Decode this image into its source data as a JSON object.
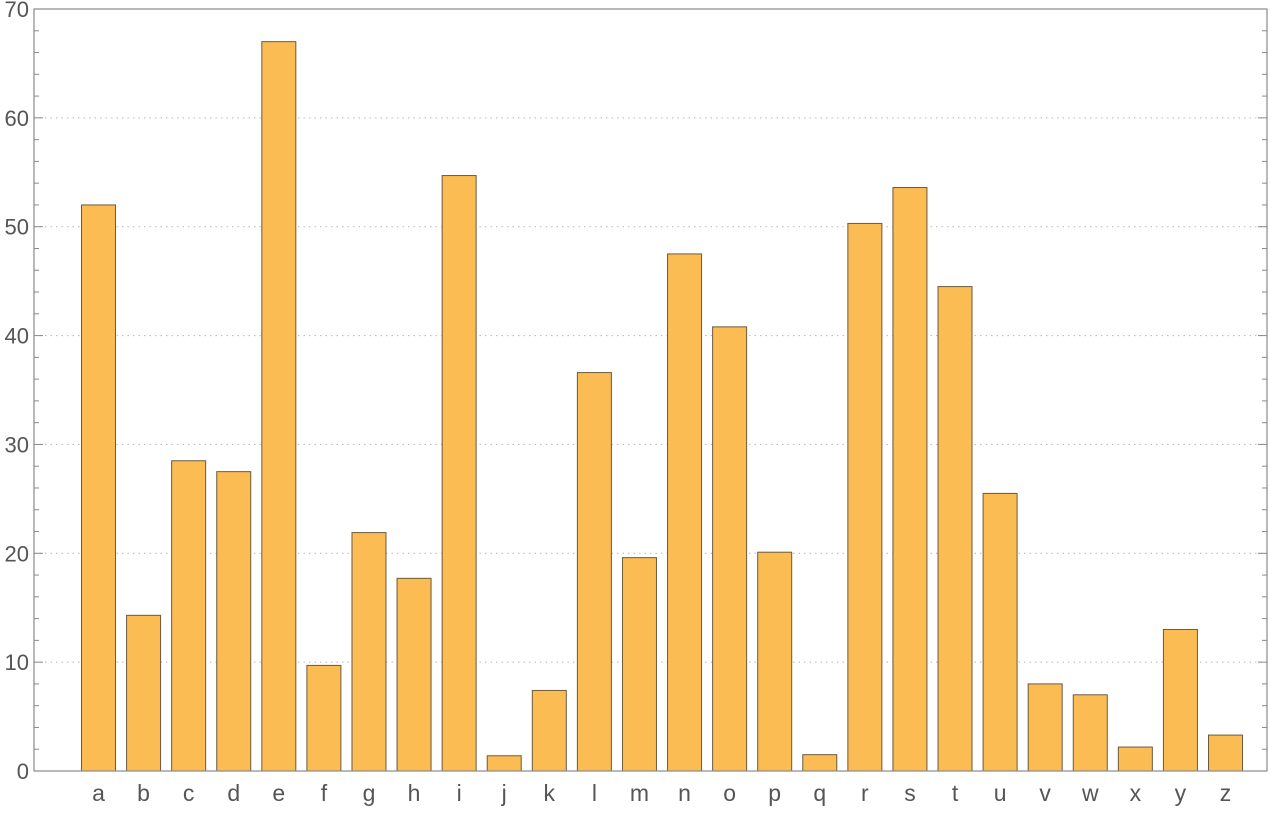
{
  "chart_data": {
    "type": "bar",
    "categories": [
      "a",
      "b",
      "c",
      "d",
      "e",
      "f",
      "g",
      "h",
      "i",
      "j",
      "k",
      "l",
      "m",
      "n",
      "o",
      "p",
      "q",
      "r",
      "s",
      "t",
      "u",
      "v",
      "w",
      "x",
      "y",
      "z"
    ],
    "values": [
      52,
      14.3,
      28.5,
      27.5,
      67,
      9.7,
      21.9,
      17.7,
      54.7,
      1.4,
      7.4,
      36.6,
      19.6,
      47.5,
      40.8,
      20.1,
      1.5,
      50.3,
      53.6,
      44.5,
      25.5,
      8.0,
      7.0,
      2.2,
      13.0,
      3.3
    ],
    "title": "",
    "xlabel": "",
    "ylabel": "",
    "ylim": [
      0,
      70
    ],
    "yticks": [
      "0",
      "10",
      "20",
      "30",
      "40",
      "50",
      "60",
      "70"
    ],
    "grid": "horizontal dotted",
    "legend": "none",
    "bar_color": "#fbbc54",
    "bar_edge_color": "#6b5a3c"
  }
}
